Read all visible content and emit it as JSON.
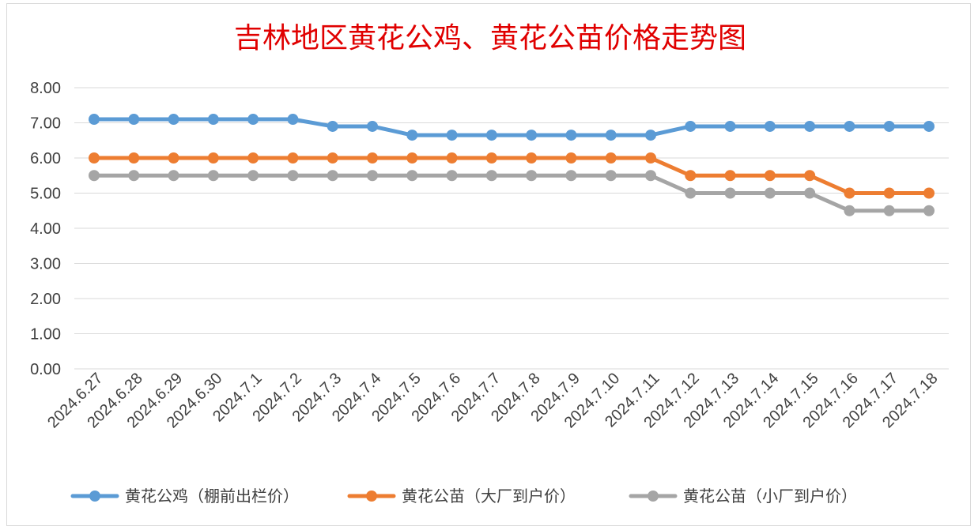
{
  "chart_data": {
    "type": "line",
    "title": "吉林地区黄花公鸡、黄花公苗价格走势图",
    "categories": [
      "2024.6.27",
      "2024.6.28",
      "2024.6.29",
      "2024.6.30",
      "2024.7.1",
      "2024.7.2",
      "2024.7.3",
      "2024.7.4",
      "2024.7.5",
      "2024.7.6",
      "2024.7.7",
      "2024.7.8",
      "2024.7.9",
      "2024.7.10",
      "2024.7.11",
      "2024.7.12",
      "2024.7.13",
      "2024.7.14",
      "2024.7.15",
      "2024.7.16",
      "2024.7.17",
      "2024.7.18"
    ],
    "yticks": [
      "0.00",
      "1.00",
      "2.00",
      "3.00",
      "4.00",
      "5.00",
      "6.00",
      "7.00",
      "8.00"
    ],
    "ylim": [
      0,
      8
    ],
    "grid": true,
    "legend_position": "bottom",
    "series": [
      {
        "name": "黄花公鸡（棚前出栏价）",
        "color": "#5b9bd5",
        "values": [
          7.1,
          7.1,
          7.1,
          7.1,
          7.1,
          7.1,
          6.9,
          6.9,
          6.65,
          6.65,
          6.65,
          6.65,
          6.65,
          6.65,
          6.65,
          6.9,
          6.9,
          6.9,
          6.9,
          6.9,
          6.9,
          6.9
        ]
      },
      {
        "name": "黄花公苗（大厂到户价）",
        "color": "#ed7d31",
        "values": [
          6.0,
          6.0,
          6.0,
          6.0,
          6.0,
          6.0,
          6.0,
          6.0,
          6.0,
          6.0,
          6.0,
          6.0,
          6.0,
          6.0,
          6.0,
          5.5,
          5.5,
          5.5,
          5.5,
          5.0,
          5.0,
          5.0
        ]
      },
      {
        "name": "黄花公苗（小厂到户价）",
        "color": "#a5a5a5",
        "values": [
          5.5,
          5.5,
          5.5,
          5.5,
          5.5,
          5.5,
          5.5,
          5.5,
          5.5,
          5.5,
          5.5,
          5.5,
          5.5,
          5.5,
          5.5,
          5.0,
          5.0,
          5.0,
          5.0,
          4.5,
          4.5,
          4.5
        ]
      }
    ]
  }
}
